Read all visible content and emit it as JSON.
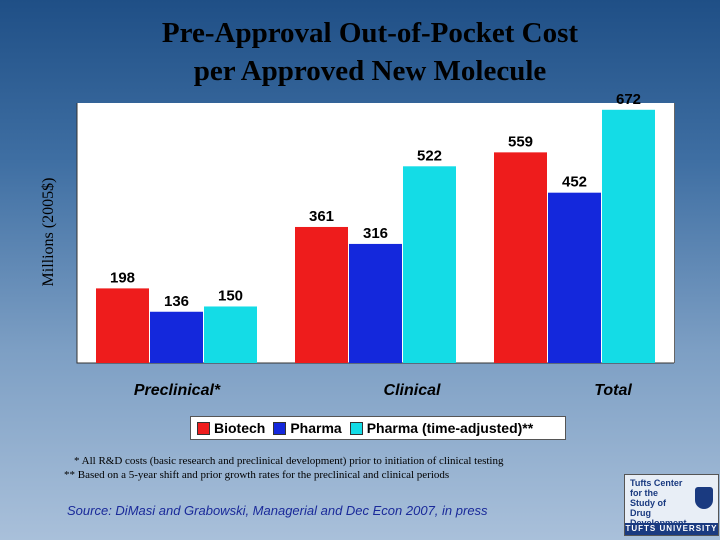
{
  "title_line1": "Pre-Approval Out-of-Pocket Cost",
  "title_line2": "per Approved New Molecule",
  "chart_data": {
    "type": "bar",
    "title": "Pre-Approval Out-of-Pocket Cost per Approved New Molecule",
    "ylabel": "Millions (2005$)",
    "categories": [
      "Preclinical*",
      "Clinical",
      "Total"
    ],
    "series": [
      {
        "name": "Biotech",
        "color": "#ee1c1c",
        "values": [
          198,
          361,
          559
        ]
      },
      {
        "name": "Pharma",
        "color": "#1428dc",
        "values": [
          136,
          316,
          452
        ]
      },
      {
        "name": "Pharma (time-adjusted)**",
        "color": "#14dce6",
        "values": [
          150,
          522,
          672
        ]
      }
    ],
    "ylim": [
      0,
      690
    ],
    "grid": false,
    "legend": "bottom"
  },
  "footnotes": {
    "line1": "* All R&D costs (basic research and preclinical development) prior to initiation of clinical testing",
    "line2": "** Based on a 5-year shift and prior growth rates for the preclinical and clinical periods"
  },
  "source": "Source: DiMasi and Grabowski, Managerial and Dec Econ 2007, in press",
  "logo": {
    "text": "Tufts Center\nfor the\nStudy of\nDrug Development",
    "university": "TUFTS UNIVERSITY"
  }
}
